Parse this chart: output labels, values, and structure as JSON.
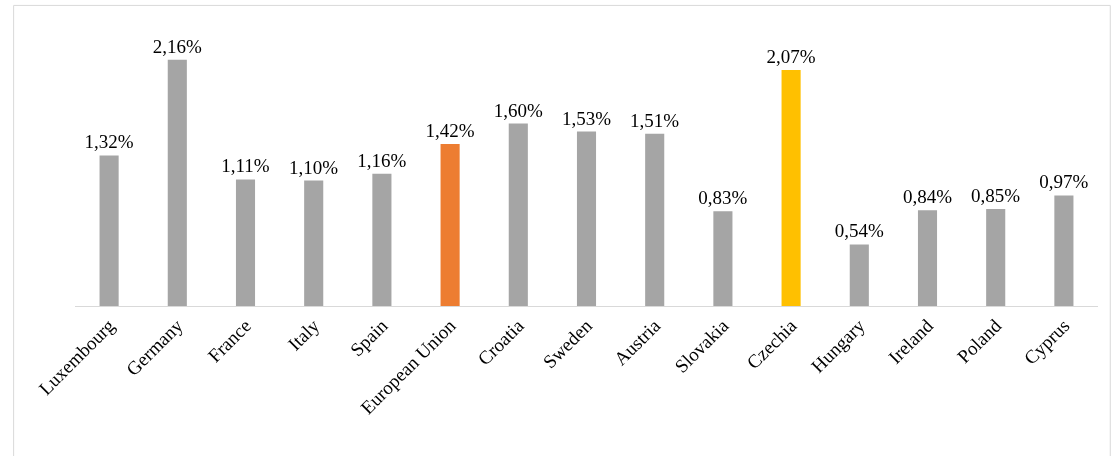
{
  "chart_data": {
    "type": "bar",
    "categories": [
      "Luxembourg",
      "Germany",
      "France",
      "Italy",
      "Spain",
      "European Union",
      "Croatia",
      "Sweden",
      "Austria",
      "Slovakia",
      "Czechia",
      "Hungary",
      "Ireland",
      "Poland",
      "Cyprus"
    ],
    "values": [
      1.32,
      2.16,
      1.11,
      1.1,
      1.16,
      1.42,
      1.6,
      1.53,
      1.51,
      0.83,
      2.07,
      0.54,
      0.84,
      0.85,
      0.97
    ],
    "value_labels": [
      "1,32%",
      "2,16%",
      "1,11%",
      "1,10%",
      "1,16%",
      "1,42%",
      "1,60%",
      "1,53%",
      "1,51%",
      "0,83%",
      "2,07%",
      "0,54%",
      "0,84%",
      "0,85%",
      "0,97%"
    ],
    "colors": [
      "#a5a5a5",
      "#a5a5a5",
      "#a5a5a5",
      "#a5a5a5",
      "#a5a5a5",
      "#ed7d31",
      "#a5a5a5",
      "#a5a5a5",
      "#a5a5a5",
      "#a5a5a5",
      "#ffc000",
      "#a5a5a5",
      "#a5a5a5",
      "#a5a5a5",
      "#a5a5a5"
    ],
    "tick_labels": "x"
  }
}
